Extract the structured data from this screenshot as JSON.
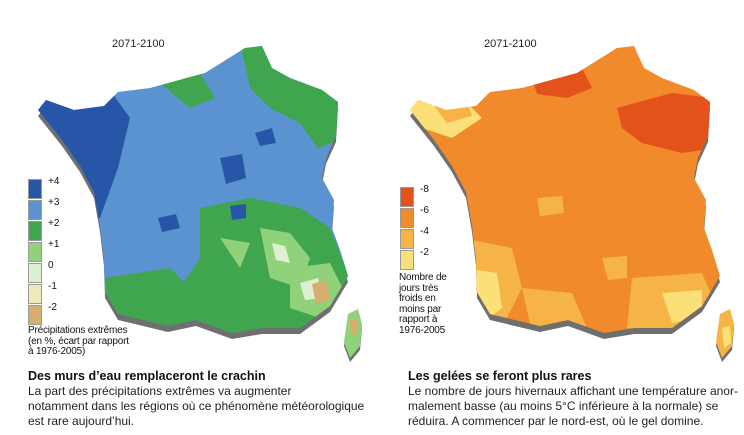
{
  "left_panel": {
    "period": "2071-2100",
    "legend": {
      "items": [
        {
          "label": "+4",
          "color": "#2756a8"
        },
        {
          "label": "+3",
          "color": "#5b93d1"
        },
        {
          "label": "+2",
          "color": "#3fa54f"
        },
        {
          "label": "+1",
          "color": "#8fd27a"
        },
        {
          "label": "0",
          "color": "#dff0d2"
        },
        {
          "label": "-1",
          "color": "#efe8b8"
        },
        {
          "label": "-2",
          "color": "#d6ae6e"
        }
      ],
      "caption_lines": [
        "Précipitations extrêmes",
        "(en %, écart par rapport",
        "à 1976-2005)"
      ]
    },
    "headline": "Des murs d’eau remplaceront le crachin",
    "body_lines": [
      "La part des précipitations extrêmes va augmenter",
      "notamment dans les régions où ce phénomène météorologique",
      "est rare aujourd’hui."
    ]
  },
  "right_panel": {
    "period": "2071-2100",
    "legend": {
      "items": [
        {
          "label": "-8",
          "color": "#e4521b"
        },
        {
          "label": "-6",
          "color": "#f08a2a"
        },
        {
          "label": "-4",
          "color": "#f6b346"
        },
        {
          "label": "-2",
          "color": "#fbe07a"
        }
      ],
      "caption_lines": [
        "Nombre de",
        "jours très",
        "froids en",
        "moins par",
        "rapport à",
        "1976-2005"
      ]
    },
    "headline": "Les gelées se feront plus rares",
    "body_lines": [
      "Le nombre de jours hivernaux affichant une température anor-",
      "malement basse (au moins 5°C inférieure à la normale) se",
      "réduira. A commencer par le nord-est, où le gel domine."
    ]
  }
}
